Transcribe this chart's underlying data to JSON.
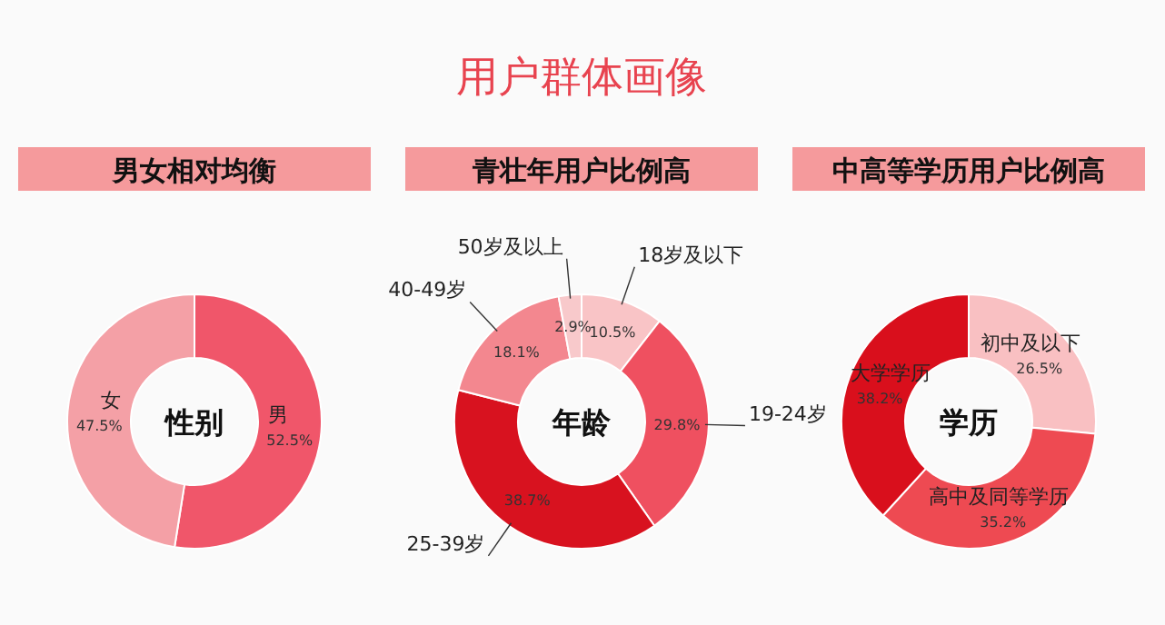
{
  "chart_data": [
    {
      "type": "donut",
      "title": "男女相对均衡",
      "annotations": [
        "用户群体画像",
        "性别"
      ],
      "categories": [
        "男",
        "女"
      ],
      "values": [
        52.5,
        47.5
      ],
      "value_labels": [
        "52.5%",
        "47.5%"
      ],
      "colors": [
        "#f0566a",
        "#f4a0a6"
      ]
    },
    {
      "type": "donut",
      "title": "青壮年用户比例高",
      "annotations": [
        "年龄"
      ],
      "categories": [
        "18岁及以下",
        "19-24岁",
        "25-39岁",
        "40-49岁",
        "50岁及以上"
      ],
      "values": [
        10.5,
        29.8,
        38.7,
        18.1,
        2.9
      ],
      "value_labels": [
        "10.5%",
        "29.8%",
        "38.7%",
        "18.1%",
        "2.9%"
      ],
      "colors": [
        "#f9c4c6",
        "#ef5060",
        "#d8121f",
        "#f3878f",
        "#f8c9cb"
      ]
    },
    {
      "type": "donut",
      "title": "中高等学历用户比例高",
      "annotations": [
        "学历"
      ],
      "categories": [
        "初中及以下",
        "高中及同等学历",
        "大学学历"
      ],
      "values": [
        26.5,
        35.2,
        38.2
      ],
      "value_labels": [
        "26.5%",
        "35.2%",
        "38.2%"
      ],
      "colors": [
        "#f9c0c2",
        "#ee4a52",
        "#d90f1c"
      ]
    }
  ]
}
